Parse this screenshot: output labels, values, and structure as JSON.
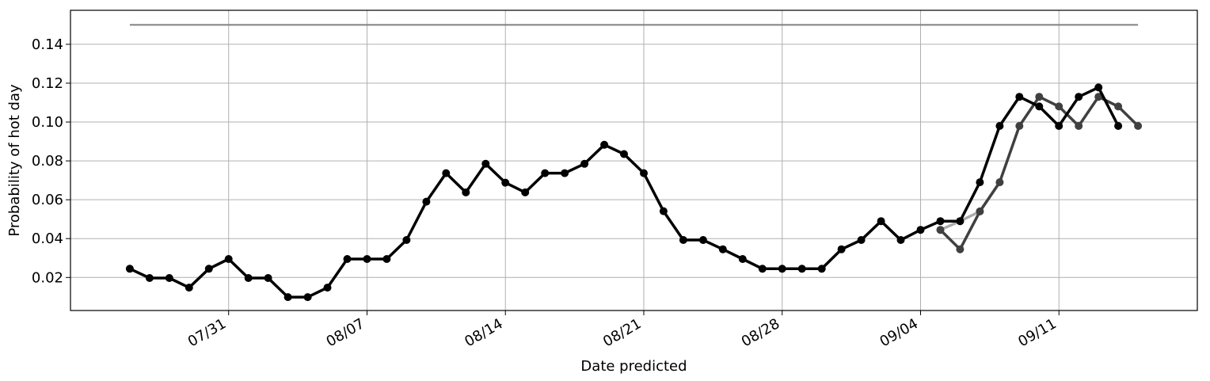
{
  "chart_data": {
    "type": "line",
    "title": "",
    "xlabel": "Date predicted",
    "ylabel": "Probability of hot day",
    "grid": true,
    "ylim": [
      0.003,
      0.1575
    ],
    "xlim": [
      "2018-07-23",
      "2018-09-18"
    ],
    "x_ticks": [
      "07/31",
      "08/07",
      "08/14",
      "08/21",
      "08/28",
      "09/04",
      "09/11"
    ],
    "y_ticks": [
      "0.02",
      "0.04",
      "0.06",
      "0.08",
      "0.10",
      "0.12",
      "0.14"
    ],
    "y_tick_values": [
      0.02,
      0.04,
      0.06,
      0.08,
      0.1,
      0.12,
      0.14
    ],
    "reference_line": {
      "y": 0.15,
      "x_start": "2018-07-26",
      "x_end": "2018-09-15",
      "color": "#808080"
    },
    "series": [
      {
        "color": "#ababab",
        "values": [
          [
            "2018-09-05",
            0.0445
          ],
          [
            "2018-09-06",
            0.049
          ],
          [
            "2018-09-07",
            0.054
          ],
          [
            "2018-09-08",
            0.069
          ]
        ]
      },
      {
        "color": "#404040",
        "values": [
          [
            "2018-09-05",
            0.0445
          ],
          [
            "2018-09-06",
            0.0345
          ],
          [
            "2018-09-07",
            0.054
          ],
          [
            "2018-09-08",
            0.069
          ],
          [
            "2018-09-09",
            0.098
          ],
          [
            "2018-09-10",
            0.113
          ],
          [
            "2018-09-11",
            0.108
          ],
          [
            "2018-09-12",
            0.098
          ],
          [
            "2018-09-13",
            0.113
          ],
          [
            "2018-09-14",
            0.108
          ],
          [
            "2018-09-15",
            0.098
          ]
        ]
      },
      {
        "color": "#000000",
        "values": [
          [
            "2018-07-26",
            0.0245
          ],
          [
            "2018-07-27",
            0.0197
          ],
          [
            "2018-07-28",
            0.0197
          ],
          [
            "2018-07-29",
            0.0148
          ],
          [
            "2018-07-30",
            0.0245
          ],
          [
            "2018-07-31",
            0.0295
          ],
          [
            "2018-08-01",
            0.0197
          ],
          [
            "2018-08-02",
            0.0197
          ],
          [
            "2018-08-03",
            0.0099
          ],
          [
            "2018-08-04",
            0.0099
          ],
          [
            "2018-08-05",
            0.0148
          ],
          [
            "2018-08-06",
            0.0295
          ],
          [
            "2018-08-07",
            0.0295
          ],
          [
            "2018-08-08",
            0.0295
          ],
          [
            "2018-08-09",
            0.0393
          ],
          [
            "2018-08-10",
            0.059
          ],
          [
            "2018-08-11",
            0.0737
          ],
          [
            "2018-08-12",
            0.0638
          ],
          [
            "2018-08-13",
            0.0785
          ],
          [
            "2018-08-14",
            0.0688
          ],
          [
            "2018-08-15",
            0.0638
          ],
          [
            "2018-08-16",
            0.0737
          ],
          [
            "2018-08-17",
            0.0737
          ],
          [
            "2018-08-18",
            0.0785
          ],
          [
            "2018-08-19",
            0.0883
          ],
          [
            "2018-08-20",
            0.0835
          ],
          [
            "2018-08-21",
            0.0737
          ],
          [
            "2018-08-22",
            0.0541
          ],
          [
            "2018-08-23",
            0.0393
          ],
          [
            "2018-08-24",
            0.0393
          ],
          [
            "2018-08-25",
            0.0345
          ],
          [
            "2018-08-26",
            0.0295
          ],
          [
            "2018-08-27",
            0.0245
          ],
          [
            "2018-08-28",
            0.0245
          ],
          [
            "2018-08-29",
            0.0245
          ],
          [
            "2018-08-30",
            0.0245
          ],
          [
            "2018-08-31",
            0.0345
          ],
          [
            "2018-09-01",
            0.0393
          ],
          [
            "2018-09-02",
            0.049
          ],
          [
            "2018-09-03",
            0.0393
          ],
          [
            "2018-09-04",
            0.0445
          ],
          [
            "2018-09-05",
            0.049
          ],
          [
            "2018-09-06",
            0.049
          ],
          [
            "2018-09-07",
            0.069
          ],
          [
            "2018-09-08",
            0.098
          ],
          [
            "2018-09-09",
            0.113
          ],
          [
            "2018-09-10",
            0.108
          ],
          [
            "2018-09-11",
            0.098
          ],
          [
            "2018-09-12",
            0.113
          ],
          [
            "2018-09-13",
            0.1178
          ],
          [
            "2018-09-14",
            0.098
          ]
        ]
      }
    ]
  }
}
